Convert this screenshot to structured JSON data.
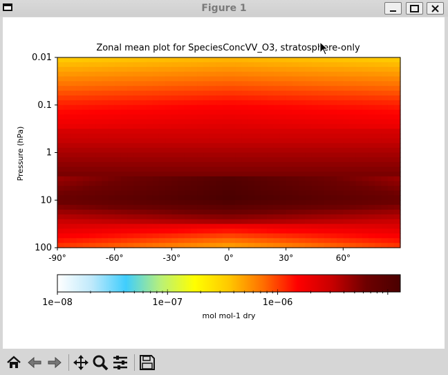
{
  "window": {
    "title": "Figure 1",
    "app_icon": "window-icon",
    "controls": [
      "minimize-icon",
      "maximize-icon",
      "close-icon"
    ]
  },
  "toolbar": {
    "buttons": [
      "home-icon",
      "back-arrow-icon",
      "forward-arrow-icon",
      "pan-icon",
      "zoom-icon",
      "configure-subplots-icon",
      "save-icon"
    ]
  },
  "chart_data": {
    "type": "heatmap",
    "title": "Zonal mean plot for SpeciesConcVV_O3, stratosphere-only",
    "xlabel": "",
    "ylabel": "Pressure (hPa)",
    "x_ticks": [
      "-90°",
      "-60°",
      "-30°",
      "0°",
      "30°",
      "60°"
    ],
    "y_ticks": [
      "0.01",
      "0.1",
      "1",
      "10",
      "100"
    ],
    "y_scale": "log",
    "y_inverted": true,
    "xlim": [
      -90,
      90
    ],
    "ylim": [
      100,
      0.01
    ],
    "colormap": "WhGrYlRd",
    "colorbar": {
      "label": "mol mol-1 dry",
      "scale": "log",
      "range": [
        1e-08,
        1.3e-05
      ],
      "ticks": [
        "1e−08",
        "1e−07",
        "1e−06"
      ],
      "colors": [
        "#ffffff",
        "#bfe9fb",
        "#3fcdfd",
        "#b8f07a",
        "#ffff00",
        "#ffc800",
        "#ff6e00",
        "#ff0000",
        "#c80000",
        "#6e0000",
        "#4a0000"
      ]
    },
    "values_description": [
      {
        "pressure_hPa": 0.01,
        "mixing_ratio": 4e-07
      },
      {
        "pressure_hPa": 0.1,
        "mixing_ratio": 1.5e-06
      },
      {
        "pressure_hPa": 1,
        "mixing_ratio": 4e-06
      },
      {
        "pressure_hPa": 10,
        "mixing_ratio": 9e-06
      },
      {
        "pressure_hPa": 100,
        "mixing_ratio": 1e-06
      }
    ]
  }
}
